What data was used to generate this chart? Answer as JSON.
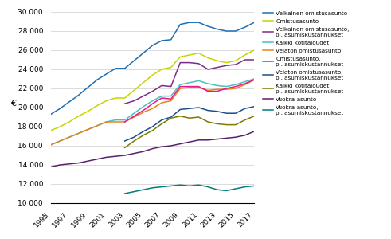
{
  "years": [
    1995,
    1996,
    1997,
    1998,
    1999,
    2000,
    2001,
    2002,
    2003,
    2004,
    2005,
    2006,
    2007,
    2008,
    2009,
    2010,
    2011,
    2012,
    2013,
    2014,
    2015,
    2016,
    2017
  ],
  "series": [
    {
      "label": "Velkainen omistusasunto",
      "color": "#1F6EB5",
      "data": [
        19300,
        19900,
        20600,
        21300,
        22100,
        22900,
        23500,
        24100,
        24100,
        24900,
        25700,
        26500,
        27000,
        27100,
        28700,
        28900,
        28900,
        28500,
        28200,
        28000,
        28000,
        28400,
        28900
      ]
    },
    {
      "label": "Omistusasunto",
      "color": "#C8D400",
      "data": [
        17600,
        18000,
        18500,
        19100,
        19600,
        20200,
        20700,
        21000,
        21000,
        21800,
        22600,
        23400,
        24000,
        24200,
        25300,
        25500,
        25700,
        25200,
        24900,
        24700,
        24900,
        25500,
        26000
      ]
    },
    {
      "label": "Velkainen omistusasunto,\npl. asumiskustannukset",
      "color": "#7B2D8B",
      "data": [
        null,
        null,
        null,
        null,
        null,
        null,
        null,
        null,
        20400,
        20700,
        21200,
        21700,
        22300,
        22200,
        24700,
        24700,
        24600,
        24000,
        24200,
        24400,
        24500,
        25000,
        25000
      ]
    },
    {
      "label": "Kaikki kotitaloudet",
      "color": "#4ABFBF",
      "data": [
        16100,
        16500,
        16900,
        17300,
        17700,
        18100,
        18500,
        18700,
        18700,
        19400,
        20100,
        20700,
        21200,
        21200,
        22400,
        22600,
        22800,
        22500,
        22300,
        22200,
        22400,
        22700,
        23000
      ]
    },
    {
      "label": "Velaton omistusasunto",
      "color": "#E8821E",
      "data": [
        16100,
        16500,
        16900,
        17300,
        17700,
        18100,
        18500,
        18500,
        18500,
        19000,
        19500,
        19900,
        20500,
        20700,
        22000,
        22100,
        22100,
        21800,
        21900,
        21900,
        22000,
        22400,
        22900
      ]
    },
    {
      "label": "Omistusasunto,\npl. asumiskustannukset",
      "color": "#E8198C",
      "data": [
        null,
        null,
        null,
        null,
        null,
        null,
        null,
        null,
        18500,
        19100,
        19700,
        20400,
        21000,
        20900,
        22200,
        22200,
        22200,
        21700,
        21700,
        22000,
        22200,
        22500,
        22900
      ]
    },
    {
      "label": "Velaton omistusasunto,\npl. asumiskustannukset",
      "color": "#1B4F8A",
      "data": [
        null,
        null,
        null,
        null,
        null,
        null,
        null,
        null,
        16500,
        16900,
        17500,
        18000,
        18700,
        19000,
        19800,
        19900,
        20000,
        19700,
        19600,
        19400,
        19400,
        19900,
        20100
      ]
    },
    {
      "label": "Kaikki kotitaloudet,\npl. asumiskustannukset",
      "color": "#7D7A00",
      "data": [
        null,
        null,
        null,
        null,
        null,
        null,
        null,
        null,
        15800,
        16500,
        17100,
        17600,
        18300,
        18900,
        19100,
        18900,
        19000,
        18500,
        18300,
        18200,
        18200,
        18700,
        19100
      ]
    },
    {
      "label": "Vuokra-asunto",
      "color": "#5C1F6E",
      "data": [
        13800,
        14000,
        14100,
        14200,
        14400,
        14600,
        14800,
        14900,
        15000,
        15200,
        15400,
        15700,
        15900,
        16000,
        16200,
        16400,
        16600,
        16600,
        16700,
        16800,
        16900,
        17100,
        17500
      ]
    },
    {
      "label": "Vuokra-asunto,\npl. asumiskustannukset",
      "color": "#007D7D",
      "data": [
        null,
        null,
        null,
        null,
        null,
        null,
        null,
        null,
        11000,
        11200,
        11400,
        11600,
        11700,
        11800,
        11900,
        11800,
        11900,
        11700,
        11400,
        11300,
        11500,
        11700,
        11800
      ]
    }
  ],
  "ylim": [
    10000,
    30000
  ],
  "yticks": [
    10000,
    12000,
    14000,
    16000,
    18000,
    20000,
    22000,
    24000,
    26000,
    28000,
    30000
  ],
  "xticks": [
    1995,
    1997,
    1999,
    2001,
    2003,
    2005,
    2007,
    2009,
    2011,
    2013,
    2015,
    2017
  ],
  "ylabel": "€",
  "grid_color": "#cccccc",
  "linewidth": 1.1
}
